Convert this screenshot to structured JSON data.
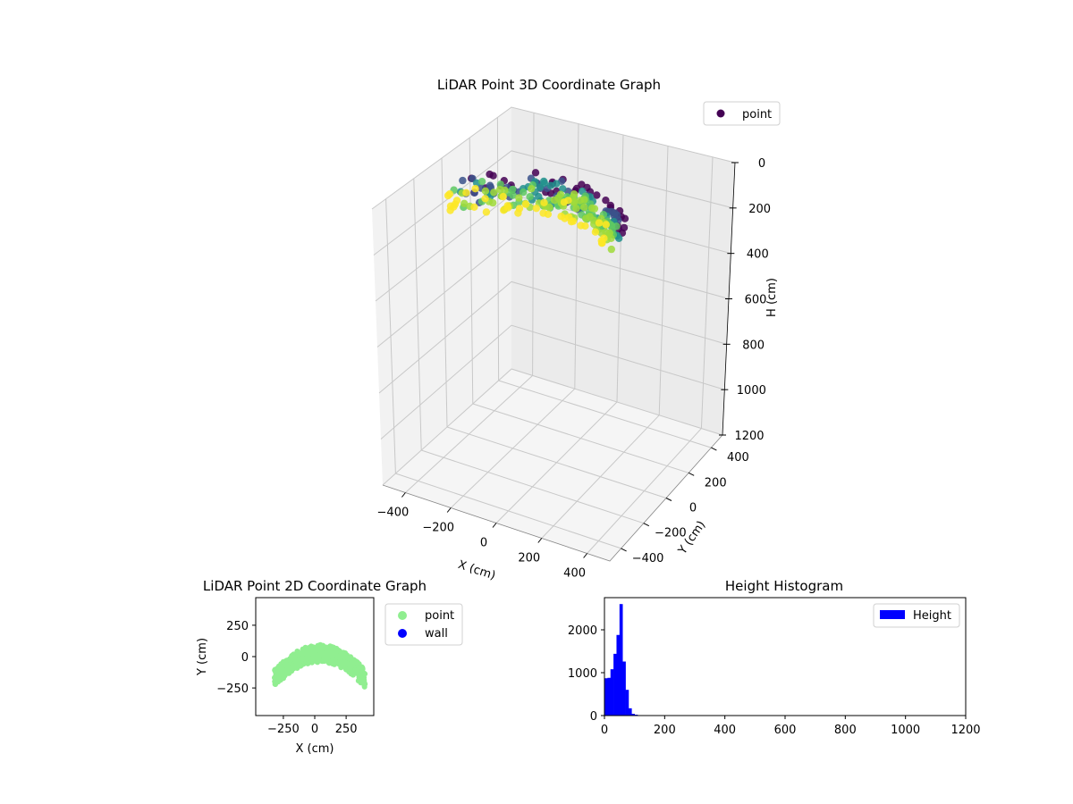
{
  "chart_data": [
    {
      "type": "scatter",
      "projection": "3d",
      "title": "LiDAR Point 3D Coordinate Graph",
      "xlabel": "X (cm)",
      "ylabel": "Y (cm)",
      "zlabel": "H (cm)",
      "xlim": [
        -500,
        500
      ],
      "ylim": [
        -500,
        500
      ],
      "zlim": [
        1200,
        0
      ],
      "x_ticks": [
        -400,
        -200,
        0,
        200,
        400
      ],
      "y_ticks": [
        -400,
        -200,
        0,
        200,
        400
      ],
      "z_ticks": [
        0,
        200,
        400,
        600,
        800,
        1000,
        1200
      ],
      "z_inverted": true,
      "grid": true,
      "legend": {
        "position": "top-right",
        "entries": [
          "point"
        ]
      },
      "colormap": "viridis",
      "series": [
        {
          "name": "point",
          "color": "#440154",
          "shape": "arc",
          "x_range": [
            -350,
            350
          ],
          "y_arc_top": 90,
          "y_arc_bottom": -230,
          "h_range": [
            0,
            120
          ]
        }
      ]
    },
    {
      "type": "scatter",
      "title": "LiDAR Point 2D Coordinate Graph",
      "xlabel": "X (cm)",
      "ylabel": "Y (cm)",
      "xlim": [
        -470,
        470
      ],
      "ylim": [
        -470,
        470
      ],
      "x_ticks": [
        -250,
        0,
        250
      ],
      "y_ticks": [
        -250,
        0,
        250
      ],
      "grid": false,
      "legend": {
        "position": "outside-right",
        "entries": [
          "point",
          "wall"
        ]
      },
      "series": [
        {
          "name": "point",
          "color": "#90ee90",
          "shape": "arc",
          "x_range": [
            -320,
            400
          ],
          "y_arc_top": 95,
          "y_arc_bottom": -230
        },
        {
          "name": "wall",
          "color": "#0000ff",
          "x": [],
          "y": []
        }
      ]
    },
    {
      "type": "bar",
      "subtype": "histogram",
      "title": "Height Histogram",
      "xlabel": "",
      "ylabel": "",
      "xlim": [
        0,
        1200
      ],
      "ylim": [
        0,
        2750
      ],
      "x_ticks": [
        0,
        200,
        400,
        600,
        800,
        1000,
        1200
      ],
      "y_ticks": [
        0,
        1000,
        2000
      ],
      "grid": false,
      "legend": {
        "position": "top-right",
        "entries": [
          "Height"
        ]
      },
      "series": [
        {
          "name": "Height",
          "color": "#0000ff",
          "bin_width": 10,
          "bin_edges_start": 0,
          "values": [
            870,
            880,
            1080,
            1440,
            1880,
            2600,
            1260,
            600,
            170,
            40,
            20,
            10
          ]
        }
      ]
    }
  ]
}
